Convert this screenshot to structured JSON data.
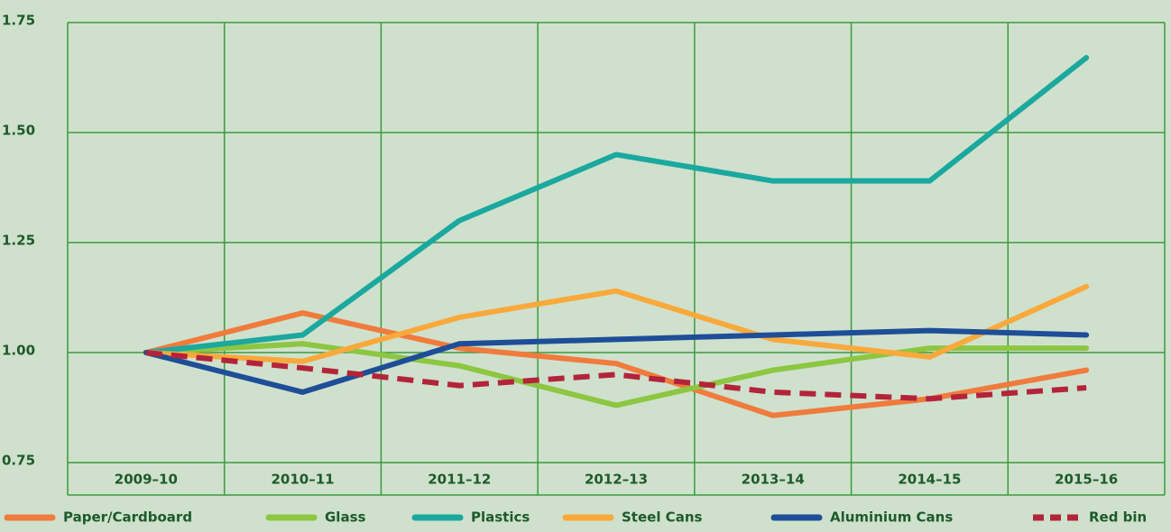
{
  "chart_data": {
    "type": "line",
    "categories": [
      "2009–10",
      "2010–11",
      "2011–12",
      "2012–13",
      "2013–14",
      "2014–15",
      "2015–16"
    ],
    "series": [
      {
        "name": "Paper/Cardboard",
        "color": "#f07b3c",
        "values": [
          1.0,
          1.09,
          1.01,
          0.975,
          0.857,
          0.895,
          0.96
        ]
      },
      {
        "name": "Glass",
        "color": "#8dc641",
        "values": [
          1.0,
          1.02,
          0.97,
          0.88,
          0.96,
          1.01,
          1.01
        ]
      },
      {
        "name": "Plastics",
        "color": "#1ba89f",
        "values": [
          1.0,
          1.04,
          1.3,
          1.45,
          1.39,
          1.39,
          1.67
        ]
      },
      {
        "name": "Steel Cans",
        "color": "#f9a93c",
        "values": [
          1.0,
          0.98,
          1.08,
          1.14,
          1.03,
          0.99,
          1.15
        ]
      },
      {
        "name": "Aluminium Cans",
        "color": "#1f4e98",
        "values": [
          1.0,
          0.91,
          1.02,
          1.03,
          1.04,
          1.05,
          1.04
        ]
      },
      {
        "name": "Red bin",
        "color": "#b3243a",
        "dashed": true,
        "values": [
          1.0,
          0.965,
          0.925,
          0.95,
          0.91,
          0.895,
          0.92
        ]
      }
    ],
    "ylim": [
      0.75,
      1.75
    ],
    "yticks": [
      {
        "value": 0.75,
        "label": "0.75"
      },
      {
        "value": 1.0,
        "label": "1.00"
      },
      {
        "value": 1.25,
        "label": "1.25"
      },
      {
        "value": 1.5,
        "label": "1.50"
      },
      {
        "value": 1.75,
        "label": "1.75"
      }
    ],
    "grid": true,
    "legend": "bottom"
  }
}
